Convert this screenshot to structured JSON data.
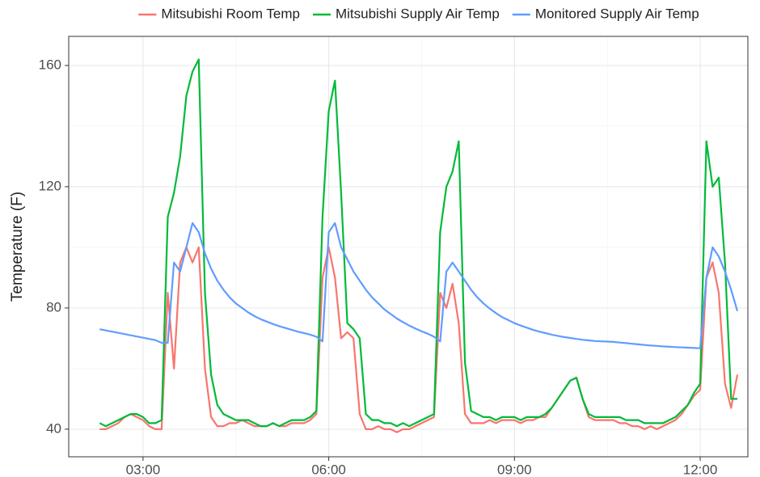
{
  "chart_data": {
    "type": "line",
    "y_label": "Temperature (F)",
    "x": [
      2.3,
      2.4,
      2.5,
      2.6,
      2.7,
      2.8,
      2.9,
      3.0,
      3.1,
      3.2,
      3.3,
      3.4,
      3.5,
      3.6,
      3.7,
      3.8,
      3.9,
      4.0,
      4.1,
      4.2,
      4.3,
      4.4,
      4.5,
      4.6,
      4.7,
      4.8,
      4.9,
      5.0,
      5.1,
      5.2,
      5.3,
      5.4,
      5.5,
      5.6,
      5.7,
      5.8,
      5.9,
      6.0,
      6.1,
      6.2,
      6.3,
      6.4,
      6.5,
      6.6,
      6.7,
      6.8,
      6.9,
      7.0,
      7.1,
      7.2,
      7.3,
      7.4,
      7.5,
      7.6,
      7.7,
      7.8,
      7.9,
      8.0,
      8.1,
      8.2,
      8.3,
      8.4,
      8.5,
      8.6,
      8.7,
      8.8,
      8.9,
      9.0,
      9.1,
      9.2,
      9.3,
      9.4,
      9.5,
      9.6,
      9.7,
      9.8,
      9.9,
      10.0,
      10.1,
      10.2,
      10.3,
      10.4,
      10.5,
      10.6,
      10.7,
      10.8,
      10.9,
      11.0,
      11.1,
      11.2,
      11.3,
      11.4,
      11.5,
      11.6,
      11.7,
      11.8,
      11.9,
      12.0,
      12.1,
      12.2,
      12.3,
      12.4,
      12.5,
      12.6
    ],
    "series": [
      {
        "name": "Mitsubishi Room Temp",
        "color": "#F8766D",
        "values": [
          40,
          40,
          41,
          42,
          44,
          45,
          44,
          43,
          41,
          40,
          40,
          85,
          60,
          95,
          100,
          95,
          100,
          60,
          44,
          41,
          41,
          42,
          42,
          43,
          42,
          41,
          41,
          41,
          42,
          41,
          41,
          42,
          42,
          42,
          43,
          45,
          90,
          100,
          90,
          70,
          72,
          70,
          45,
          40,
          40,
          41,
          40,
          40,
          39,
          40,
          40,
          41,
          42,
          43,
          44,
          85,
          80,
          88,
          75,
          45,
          42,
          42,
          42,
          43,
          42,
          43,
          43,
          43,
          42,
          43,
          43,
          44,
          44,
          47,
          50,
          53,
          56,
          57,
          50,
          44,
          43,
          43,
          43,
          43,
          42,
          42,
          41,
          41,
          40,
          41,
          40,
          41,
          42,
          43,
          45,
          48,
          51,
          53,
          90,
          95,
          85,
          55,
          47,
          58
        ]
      },
      {
        "name": "Mitsubishi Supply Air Temp",
        "color": "#00BA38",
        "values": [
          42,
          41,
          42,
          43,
          44,
          45,
          45,
          44,
          42,
          42,
          43,
          110,
          118,
          130,
          150,
          158,
          162,
          85,
          58,
          48,
          45,
          44,
          43,
          43,
          43,
          42,
          41,
          41,
          42,
          41,
          42,
          43,
          43,
          43,
          44,
          46,
          110,
          145,
          155,
          118,
          75,
          73,
          70,
          45,
          43,
          43,
          42,
          42,
          41,
          42,
          41,
          42,
          43,
          44,
          45,
          105,
          120,
          125,
          135,
          62,
          46,
          45,
          44,
          44,
          43,
          44,
          44,
          44,
          43,
          44,
          44,
          44,
          45,
          47,
          50,
          53,
          56,
          57,
          50,
          45,
          44,
          44,
          44,
          44,
          44,
          43,
          43,
          43,
          42,
          42,
          42,
          42,
          43,
          44,
          46,
          48,
          52,
          55,
          135,
          120,
          123,
          95,
          50,
          50
        ]
      },
      {
        "name": "Monitored Supply Air Temp",
        "color": "#619CFF",
        "values": [
          73,
          72.6,
          72.2,
          71.8,
          71.4,
          71,
          70.6,
          70.2,
          69.8,
          69.4,
          68.5,
          68.5,
          95,
          92,
          100,
          108,
          105,
          98,
          93,
          89,
          86,
          83.5,
          81.5,
          80,
          78.5,
          77.3,
          76.3,
          75.5,
          74.7,
          74,
          73.4,
          72.8,
          72.2,
          71.7,
          71.2,
          70.5,
          69,
          105,
          108,
          100,
          96,
          92,
          89,
          86,
          83.5,
          81.5,
          79.5,
          78,
          76.5,
          75.3,
          74.2,
          73.2,
          72.3,
          71.5,
          70.5,
          69,
          92,
          95,
          92,
          89,
          86,
          83.5,
          81.5,
          79.8,
          78.3,
          77,
          76,
          75,
          74.2,
          73.5,
          72.8,
          72.2,
          71.7,
          71.2,
          70.8,
          70.4,
          70.1,
          69.8,
          69.5,
          69.3,
          69.1,
          69,
          68.9,
          68.8,
          68.6,
          68.4,
          68.2,
          68,
          67.8,
          67.6,
          67.5,
          67.3,
          67.2,
          67.1,
          67,
          66.9,
          66.8,
          66.7,
          90,
          100,
          97,
          92,
          86,
          79
        ]
      }
    ],
    "xlim": [
      1.8,
      12.77
    ],
    "xticks": [
      {
        "value": 3,
        "label": "03:00"
      },
      {
        "value": 6,
        "label": "06:00"
      },
      {
        "value": 9,
        "label": "09:00"
      },
      {
        "value": 12,
        "label": "12:00"
      }
    ],
    "ylim": [
      30.9,
      169.6
    ],
    "yticks": [
      40,
      80,
      120,
      160
    ],
    "grid": true,
    "legend": "top"
  }
}
